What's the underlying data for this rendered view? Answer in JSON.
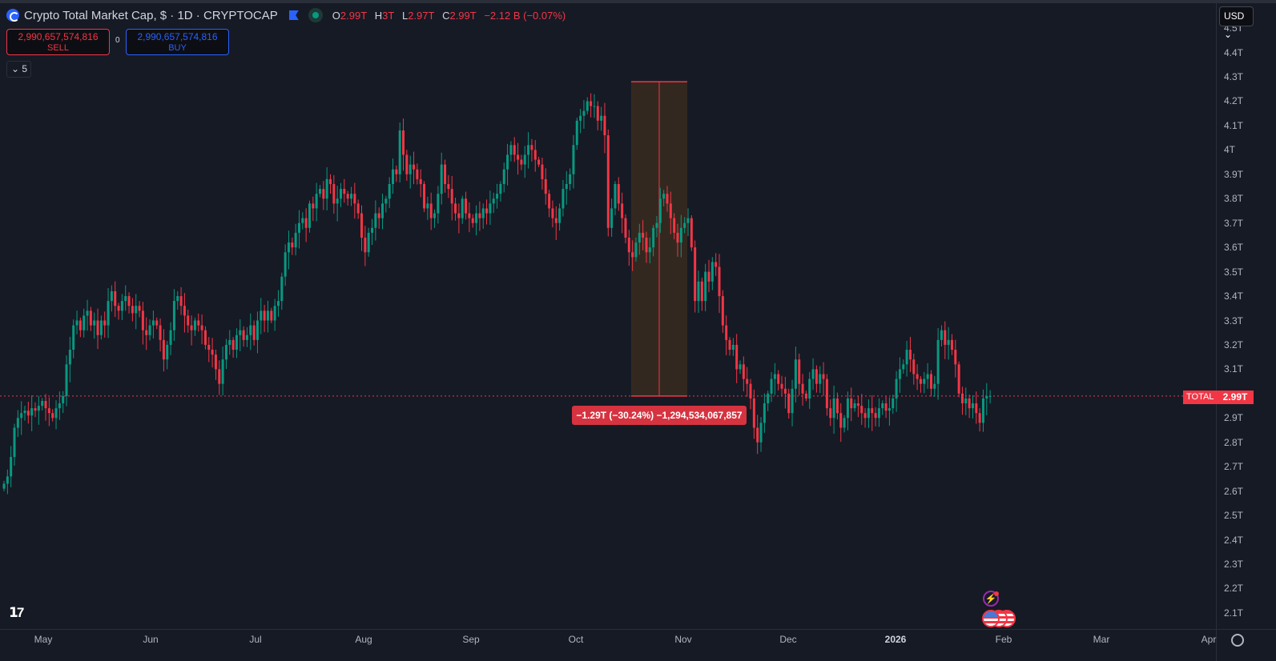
{
  "header": {
    "title": "Crypto Total Market Cap, $ · 1D · CRYPTOCAP",
    "ohlc": {
      "o_label": "O",
      "o": "2.99T",
      "h_label": "H",
      "h": "3T",
      "l_label": "L",
      "l": "2.97T",
      "c_label": "C",
      "c": "2.99T",
      "change": "−2.12 B (−0.07%)"
    }
  },
  "trade": {
    "sell_price": "2,990,657,574,816",
    "sell_label": "SELL",
    "spread": "0",
    "buy_price": "2,990,657,574,816",
    "buy_label": "BUY"
  },
  "indicators_collapse": "5",
  "currency": "USD",
  "chart_data": {
    "type": "candlestick",
    "symbol_tag": "TOTAL",
    "last_price_label": "2.99T",
    "last_price": 2.99,
    "ylim": [
      2.05,
      4.52
    ],
    "y_ticks": [
      {
        "v": 4.5,
        "l": "4.5T"
      },
      {
        "v": 4.4,
        "l": "4.4T"
      },
      {
        "v": 4.3,
        "l": "4.3T"
      },
      {
        "v": 4.2,
        "l": "4.2T"
      },
      {
        "v": 4.1,
        "l": "4.1T"
      },
      {
        "v": 4.0,
        "l": "4T"
      },
      {
        "v": 3.9,
        "l": "3.9T"
      },
      {
        "v": 3.8,
        "l": "3.8T"
      },
      {
        "v": 3.7,
        "l": "3.7T"
      },
      {
        "v": 3.6,
        "l": "3.6T"
      },
      {
        "v": 3.5,
        "l": "3.5T"
      },
      {
        "v": 3.4,
        "l": "3.4T"
      },
      {
        "v": 3.3,
        "l": "3.3T"
      },
      {
        "v": 3.2,
        "l": "3.2T"
      },
      {
        "v": 3.1,
        "l": "3.1T"
      },
      {
        "v": 2.9,
        "l": "2.9T"
      },
      {
        "v": 2.8,
        "l": "2.8T"
      },
      {
        "v": 2.7,
        "l": "2.7T"
      },
      {
        "v": 2.6,
        "l": "2.6T"
      },
      {
        "v": 2.5,
        "l": "2.5T"
      },
      {
        "v": 2.4,
        "l": "2.4T"
      },
      {
        "v": 2.3,
        "l": "2.3T"
      },
      {
        "v": 2.2,
        "l": "2.2T"
      },
      {
        "v": 2.1,
        "l": "2.1T"
      }
    ],
    "x_ticks": [
      "May",
      "Jun",
      "Jul",
      "Aug",
      "Sep",
      "Oct",
      "Nov",
      "Dec",
      "2026",
      "Feb",
      "Mar",
      "Apr"
    ],
    "colors": {
      "up": "#089981",
      "down": "#f23645",
      "background": "#161a25"
    },
    "closes": [
      2.63,
      2.66,
      2.74,
      2.86,
      2.9,
      2.92,
      2.93,
      2.91,
      2.94,
      2.93,
      2.95,
      2.97,
      2.94,
      2.92,
      2.9,
      2.94,
      2.96,
      2.99,
      3.12,
      3.18,
      3.28,
      3.3,
      3.26,
      3.32,
      3.34,
      3.28,
      3.3,
      3.24,
      3.3,
      3.28,
      3.38,
      3.42,
      3.36,
      3.34,
      3.38,
      3.4,
      3.36,
      3.33,
      3.36,
      3.34,
      3.26,
      3.24,
      3.28,
      3.3,
      3.28,
      3.22,
      3.14,
      3.2,
      3.26,
      3.38,
      3.4,
      3.36,
      3.32,
      3.28,
      3.26,
      3.3,
      3.28,
      3.26,
      3.2,
      3.18,
      3.16,
      3.1,
      3.04,
      3.14,
      3.2,
      3.22,
      3.18,
      3.24,
      3.26,
      3.22,
      3.24,
      3.28,
      3.22,
      3.3,
      3.34,
      3.3,
      3.34,
      3.3,
      3.36,
      3.38,
      3.48,
      3.58,
      3.62,
      3.6,
      3.66,
      3.7,
      3.72,
      3.68,
      3.78,
      3.76,
      3.82,
      3.84,
      3.8,
      3.88,
      3.86,
      3.78,
      3.8,
      3.84,
      3.82,
      3.8,
      3.82,
      3.78,
      3.74,
      3.64,
      3.58,
      3.66,
      3.68,
      3.74,
      3.72,
      3.78,
      3.8,
      3.86,
      3.92,
      3.9,
      4.08,
      3.98,
      3.9,
      3.94,
      3.92,
      3.88,
      3.86,
      3.76,
      3.78,
      3.72,
      3.74,
      3.82,
      3.94,
      3.86,
      3.84,
      3.78,
      3.74,
      3.72,
      3.8,
      3.74,
      3.72,
      3.7,
      3.74,
      3.72,
      3.76,
      3.74,
      3.78,
      3.8,
      3.82,
      3.86,
      3.92,
      3.98,
      4.02,
      3.98,
      3.96,
      3.94,
      3.98,
      4.02,
      4.0,
      3.96,
      3.94,
      3.88,
      3.82,
      3.76,
      3.72,
      3.7,
      3.76,
      3.84,
      3.86,
      3.9,
      4.02,
      4.12,
      4.14,
      4.16,
      4.2,
      4.18,
      4.18,
      4.12,
      4.14,
      4.06,
      3.68,
      3.76,
      3.86,
      3.78,
      3.72,
      3.64,
      3.58,
      3.56,
      3.62,
      3.66,
      3.64,
      3.58,
      3.6,
      3.68,
      3.7,
      3.8,
      3.82,
      3.78,
      3.72,
      3.66,
      3.62,
      3.68,
      3.7,
      3.72,
      3.6,
      3.38,
      3.46,
      3.38,
      3.5,
      3.46,
      3.54,
      3.52,
      3.4,
      3.28,
      3.22,
      3.18,
      3.2,
      3.1,
      3.12,
      3.06,
      3.04,
      2.98,
      2.86,
      2.8,
      2.88,
      2.96,
      3.0,
      3.06,
      3.08,
      3.04,
      3.02,
      3.0,
      2.92,
      3.02,
      3.14,
      3.04,
      3.0,
      2.98,
      3.06,
      3.1,
      3.04,
      3.08,
      3.06,
      2.94,
      2.9,
      2.98,
      2.92,
      2.86,
      2.9,
      2.98,
      2.94,
      2.96,
      2.95,
      2.92,
      2.9,
      2.94,
      2.92,
      2.9,
      2.94,
      2.96,
      2.93,
      2.94,
      2.98,
      3.06,
      3.1,
      3.12,
      3.18,
      3.14,
      3.08,
      3.06,
      3.04,
      3.06,
      3.08,
      3.02,
      3.04,
      3.22,
      3.26,
      3.2,
      3.22,
      3.18,
      3.12,
      3.0,
      2.96,
      2.98,
      2.94,
      2.96,
      2.92,
      2.88,
      2.98,
      2.99,
      2.99
    ],
    "measurement": {
      "from": 4.28,
      "to": 2.99,
      "label": "−1.29T (−30.24%) −1,294,534,067,857"
    }
  }
}
